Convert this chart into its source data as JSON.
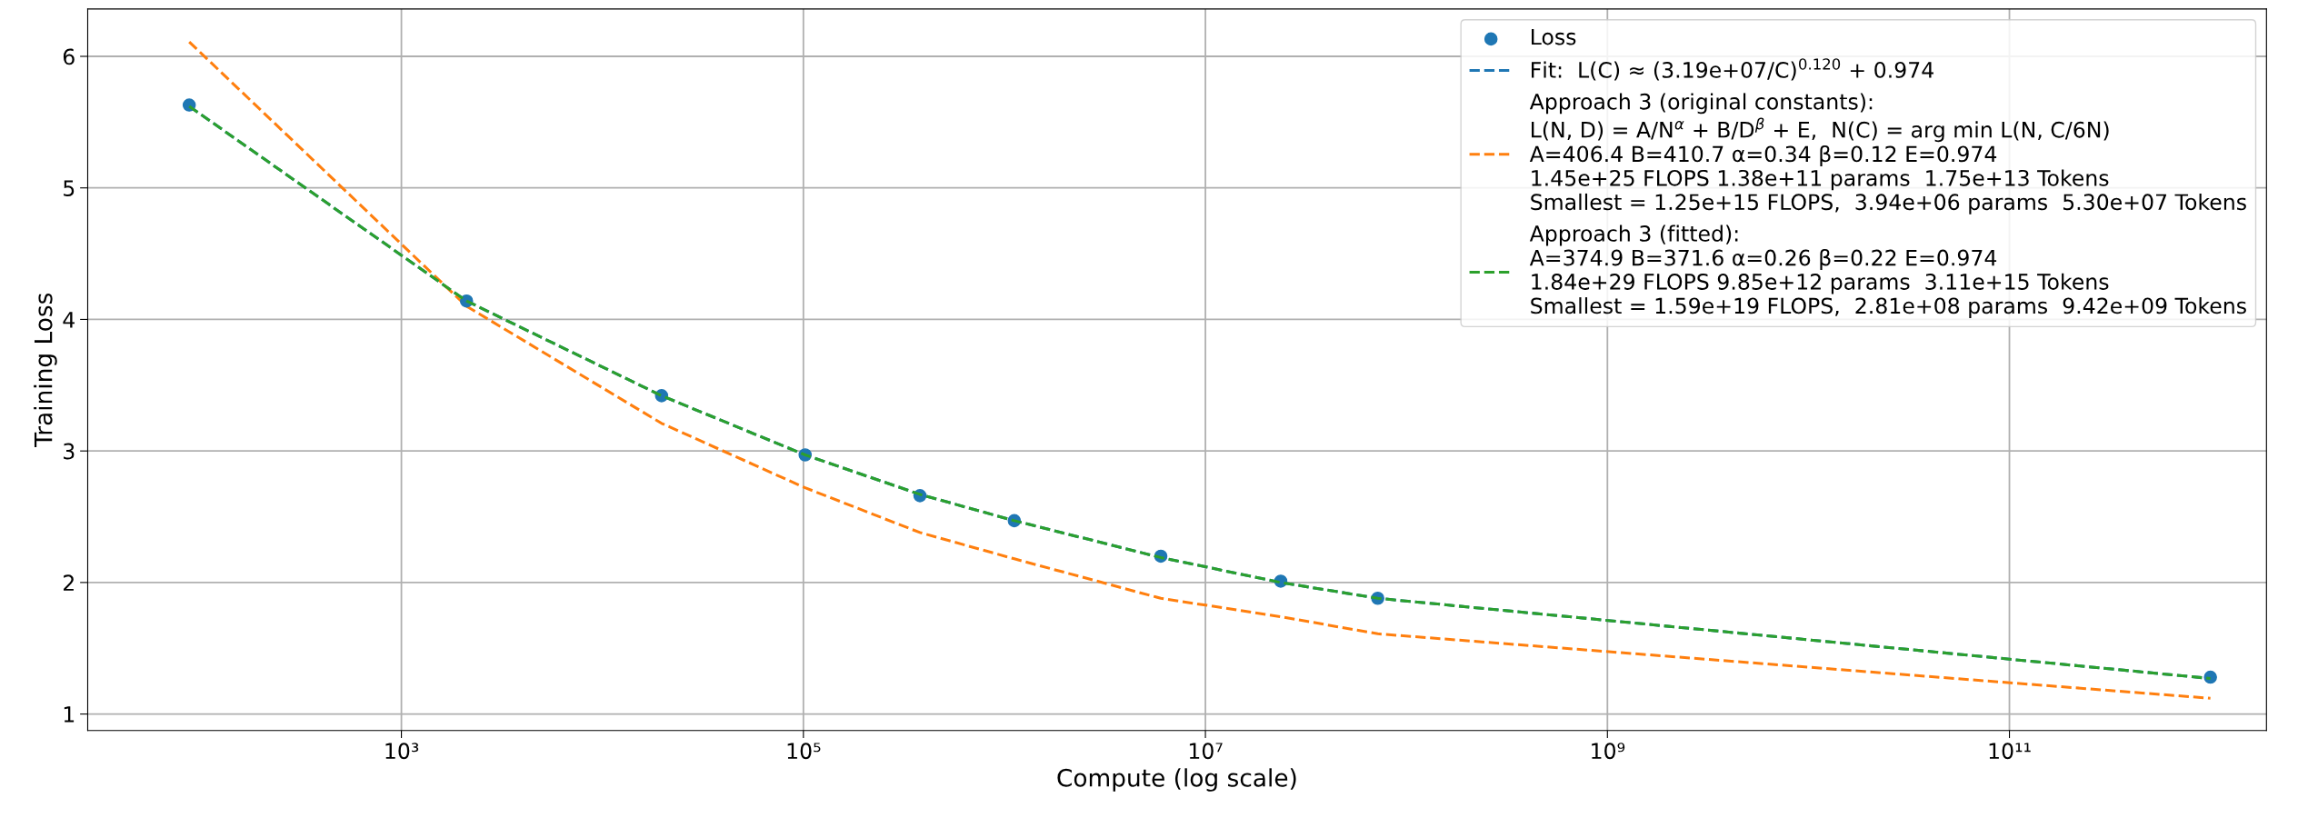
{
  "chart_data": {
    "type": "line",
    "xlabel": "Compute (log scale)",
    "ylabel": "Training Loss",
    "log": "x",
    "x": [
      88,
      2110,
      19700,
      102000,
      380000,
      1120000,
      6000000,
      23700000,
      72000000,
      1000000000000
    ],
    "xlim": [
      27.5,
      1900000000000
    ],
    "xticks": [
      {
        "value": 1000,
        "label": "10³"
      },
      {
        "value": 100000,
        "label": "10⁵"
      },
      {
        "value": 10000000,
        "label": "10⁷"
      },
      {
        "value": 1000000000,
        "label": "10⁹"
      },
      {
        "value": 100000000000,
        "label": "10¹¹"
      }
    ],
    "ylim": [
      0.875,
      6.36
    ],
    "yticks": [
      1,
      2,
      3,
      4,
      5,
      6
    ],
    "grid": true,
    "legend": "top right",
    "series": [
      {
        "name": "Loss",
        "type": "scatter",
        "marker": "circle",
        "color": "#1f77b4",
        "values": [
          5.63,
          4.14,
          3.42,
          2.97,
          2.66,
          2.47,
          2.2,
          2.01,
          1.88,
          1.28
        ]
      },
      {
        "name": "Fit:  L(C) ≈ (3.19e+07/C)$^{0.120}$ + 0.974",
        "line_style": "dashed",
        "color": "#1f77b4",
        "values": [
          5.62,
          4.14,
          3.42,
          2.97,
          2.67,
          2.47,
          2.19,
          2.0,
          1.88,
          1.27
        ]
      },
      {
        "name": "Approach 3 (original constants):\nL(N, D) = A/N$^{α}$ + B/D$^{β}$ + E,  N(C) = arg min L(N, C/6N)\nA=406.4 B=410.7 α=0.34 β=0.12 E=0.974\n1.45e+25 FLOPS 1.38e+11 params  1.75e+13 Tokens\nSmallest = 1.25e+15 FLOPS,  3.94e+06 params  5.30e+07 Tokens",
        "line_style": "dashed",
        "color": "#ff7f0e",
        "values": [
          6.11,
          4.1,
          3.21,
          2.72,
          2.38,
          2.18,
          1.88,
          1.74,
          1.61,
          1.12
        ]
      },
      {
        "name": "Approach 3 (fitted):\nA=374.9 B=371.6 α=0.26 β=0.22 E=0.974\n1.84e+29 FLOPS 9.85e+12 params  3.11e+15 Tokens\nSmallest = 1.59e+19 FLOPS,  2.81e+08 params  9.42e+09 Tokens",
        "line_style": "dashed",
        "color": "#2ca02c",
        "values": [
          5.62,
          4.14,
          3.42,
          2.97,
          2.67,
          2.47,
          2.19,
          2.0,
          1.88,
          1.27
        ]
      }
    ]
  }
}
